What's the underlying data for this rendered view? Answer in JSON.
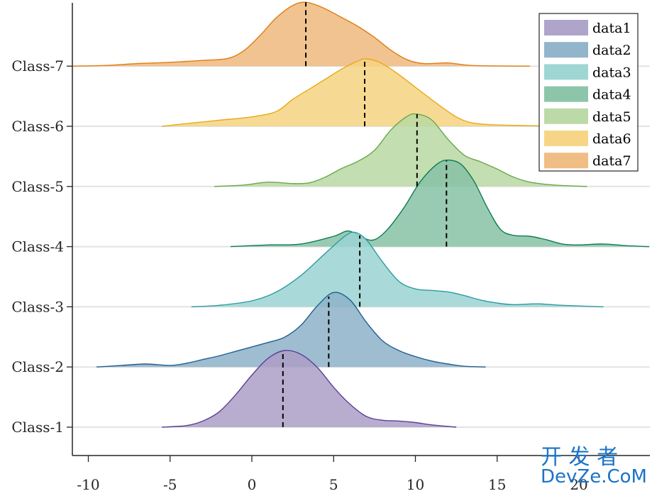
{
  "chart_data": {
    "type": "ridgeline",
    "title": "",
    "xlabel": "",
    "ylabel": "",
    "xlim": [
      -11,
      24.3
    ],
    "xticks": [
      -10,
      -5,
      0,
      5,
      10,
      15,
      20
    ],
    "xtick_labels": [
      "-10",
      "-5",
      "0",
      "5",
      "10",
      "15",
      "20"
    ],
    "grid": "horizontal baselines",
    "legend_position": "top-right",
    "series": [
      {
        "name": "data1",
        "category": "Class-1",
        "color": "#5b3f96",
        "fill": "#ab9fc6",
        "median": 1.9,
        "peak_rel": 1.0,
        "density": [
          [
            -5.5,
            0
          ],
          [
            -4,
            0.02
          ],
          [
            -3,
            0.08
          ],
          [
            -2,
            0.2
          ],
          [
            -1,
            0.42
          ],
          [
            0,
            0.68
          ],
          [
            1,
            0.9
          ],
          [
            2,
            1.0
          ],
          [
            3,
            0.95
          ],
          [
            4,
            0.78
          ],
          [
            5,
            0.52
          ],
          [
            6,
            0.3
          ],
          [
            7,
            0.14
          ],
          [
            8,
            0.09
          ],
          [
            9,
            0.08
          ],
          [
            10,
            0.06
          ],
          [
            11,
            0.03
          ],
          [
            12.5,
            0
          ]
        ]
      },
      {
        "name": "data2",
        "category": "Class-2",
        "color": "#1f5f93",
        "fill": "#8db1c8",
        "median": 4.7,
        "peak_rel": 0.98,
        "density": [
          [
            -9.5,
            0
          ],
          [
            -8,
            0.02
          ],
          [
            -6.5,
            0.04
          ],
          [
            -5,
            0.02
          ],
          [
            -4,
            0.05
          ],
          [
            -3,
            0.1
          ],
          [
            -2,
            0.15
          ],
          [
            -1,
            0.21
          ],
          [
            0,
            0.27
          ],
          [
            1,
            0.33
          ],
          [
            2,
            0.4
          ],
          [
            3,
            0.56
          ],
          [
            4,
            0.82
          ],
          [
            5,
            1.0
          ],
          [
            6,
            0.9
          ],
          [
            7,
            0.6
          ],
          [
            8,
            0.35
          ],
          [
            9,
            0.22
          ],
          [
            10,
            0.14
          ],
          [
            11,
            0.08
          ],
          [
            12,
            0.04
          ],
          [
            13,
            0.01
          ],
          [
            14.3,
            0
          ]
        ]
      },
      {
        "name": "data3",
        "category": "Class-3",
        "color": "#2c9c9e",
        "fill": "#9ad4d2",
        "median": 6.6,
        "peak_rel": 0.99,
        "density": [
          [
            -3.7,
            0
          ],
          [
            -2,
            0.02
          ],
          [
            0,
            0.08
          ],
          [
            1.5,
            0.2
          ],
          [
            3,
            0.42
          ],
          [
            4.5,
            0.72
          ],
          [
            5.7,
            0.95
          ],
          [
            6.3,
            1.0
          ],
          [
            7,
            0.9
          ],
          [
            8,
            0.6
          ],
          [
            9,
            0.34
          ],
          [
            10,
            0.24
          ],
          [
            11,
            0.22
          ],
          [
            12,
            0.2
          ],
          [
            13,
            0.15
          ],
          [
            14,
            0.09
          ],
          [
            15,
            0.05
          ],
          [
            16,
            0.03
          ],
          [
            17.5,
            0.04
          ],
          [
            19,
            0.02
          ],
          [
            21.5,
            0
          ]
        ]
      },
      {
        "name": "data4",
        "category": "Class-4",
        "color": "#0e7c52",
        "fill": "#87c2a6",
        "median": 11.9,
        "peak_rel": 1.0,
        "density": [
          [
            -1.3,
            0
          ],
          [
            1,
            0.02
          ],
          [
            3,
            0.03
          ],
          [
            5,
            0.12
          ],
          [
            5.9,
            0.18
          ],
          [
            6.8,
            0.1
          ],
          [
            7.5,
            0.08
          ],
          [
            8.3,
            0.2
          ],
          [
            9.3,
            0.45
          ],
          [
            10.3,
            0.75
          ],
          [
            11.3,
            0.95
          ],
          [
            12,
            1.0
          ],
          [
            12.8,
            0.95
          ],
          [
            13.6,
            0.75
          ],
          [
            14.4,
            0.45
          ],
          [
            15.2,
            0.2
          ],
          [
            16,
            0.13
          ],
          [
            17,
            0.12
          ],
          [
            18,
            0.08
          ],
          [
            19,
            0.03
          ],
          [
            20,
            0.02
          ],
          [
            21.5,
            0.03
          ],
          [
            23,
            0.01
          ],
          [
            24.3,
            0
          ]
        ]
      },
      {
        "name": "data5",
        "category": "Class-5",
        "color": "#6aa84a",
        "fill": "#b8d8a2",
        "median": 10.1,
        "peak_rel": 1.0,
        "density": [
          [
            -2.3,
            0
          ],
          [
            -0.5,
            0.02
          ],
          [
            1,
            0.06
          ],
          [
            2.5,
            0.04
          ],
          [
            3.5,
            0.05
          ],
          [
            4.5,
            0.13
          ],
          [
            5.5,
            0.25
          ],
          [
            6.5,
            0.35
          ],
          [
            7.5,
            0.5
          ],
          [
            8.5,
            0.78
          ],
          [
            9.5,
            0.97
          ],
          [
            10.1,
            1.0
          ],
          [
            11,
            0.92
          ],
          [
            12,
            0.65
          ],
          [
            13,
            0.43
          ],
          [
            14,
            0.34
          ],
          [
            15,
            0.24
          ],
          [
            16,
            0.13
          ],
          [
            17,
            0.06
          ],
          [
            18.5,
            0.02
          ],
          [
            20.5,
            0
          ]
        ]
      },
      {
        "name": "data6",
        "category": "Class-6",
        "color": "#e9a91a",
        "fill": "#f5d480",
        "median": 6.9,
        "peak_rel": 1.0,
        "density": [
          [
            -5.5,
            0
          ],
          [
            -4,
            0.04
          ],
          [
            -2,
            0.09
          ],
          [
            0,
            0.14
          ],
          [
            1.5,
            0.22
          ],
          [
            2.5,
            0.4
          ],
          [
            3.5,
            0.55
          ],
          [
            4.5,
            0.7
          ],
          [
            5.5,
            0.85
          ],
          [
            6.5,
            0.97
          ],
          [
            7,
            1.0
          ],
          [
            7.8,
            0.95
          ],
          [
            8.8,
            0.8
          ],
          [
            10,
            0.58
          ],
          [
            11.3,
            0.34
          ],
          [
            12.5,
            0.14
          ],
          [
            13.5,
            0.05
          ],
          [
            15,
            0.02
          ],
          [
            17,
            0.01
          ],
          [
            18.5,
            0
          ]
        ]
      },
      {
        "name": "data7",
        "category": "Class-7",
        "color": "#e07d10",
        "fill": "#efb97e",
        "median": 3.3,
        "peak_rel": 1.0,
        "density": [
          [
            -11,
            0
          ],
          [
            -9,
            0.01
          ],
          [
            -7,
            0.04
          ],
          [
            -5,
            0.06
          ],
          [
            -3,
            0.09
          ],
          [
            -1.5,
            0.12
          ],
          [
            -0.5,
            0.24
          ],
          [
            0.5,
            0.48
          ],
          [
            1.5,
            0.76
          ],
          [
            2.5,
            0.95
          ],
          [
            3.3,
            1.0
          ],
          [
            4.3,
            0.92
          ],
          [
            5.5,
            0.76
          ],
          [
            6.5,
            0.62
          ],
          [
            7.5,
            0.45
          ],
          [
            8.5,
            0.25
          ],
          [
            9.5,
            0.1
          ],
          [
            10.5,
            0.04
          ],
          [
            12,
            0.05
          ],
          [
            13.5,
            0.01
          ],
          [
            17,
            0
          ]
        ]
      }
    ],
    "categories": [
      "Class-1",
      "Class-2",
      "Class-3",
      "Class-4",
      "Class-5",
      "Class-6",
      "Class-7"
    ]
  },
  "watermark": {
    "line1": "开 发 者",
    "line2": "DevZe.CoM"
  }
}
